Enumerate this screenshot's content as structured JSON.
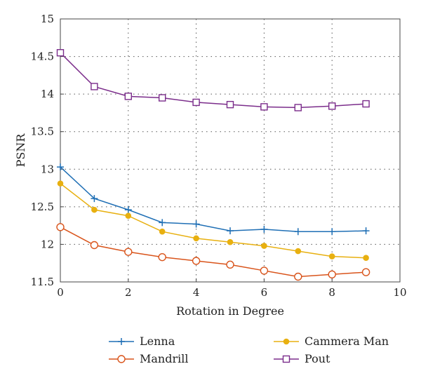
{
  "chart_data": {
    "type": "line",
    "title": "",
    "xlabel": "Rotation in Degree",
    "ylabel": "PSNR",
    "xlim": [
      0,
      10
    ],
    "ylim": [
      11.5,
      15
    ],
    "xticks": [
      0,
      2,
      4,
      6,
      8,
      10
    ],
    "yticks": [
      11.5,
      12,
      12.5,
      13,
      13.5,
      14,
      14.5,
      15
    ],
    "grid": true,
    "legend_position": "bottom",
    "x": [
      0,
      1,
      2,
      3,
      4,
      5,
      6,
      7,
      8,
      9
    ],
    "series": [
      {
        "name": "Lenna",
        "color": "#1f6fb5",
        "marker": "plus",
        "values": [
          13.03,
          12.61,
          12.46,
          12.29,
          12.27,
          12.18,
          12.2,
          12.17,
          12.17,
          12.18
        ]
      },
      {
        "name": "Cammera Man",
        "color": "#e8b010",
        "marker": "dot",
        "values": [
          12.81,
          12.46,
          12.38,
          12.17,
          12.08,
          12.03,
          11.98,
          11.91,
          11.84,
          11.82
        ]
      },
      {
        "name": "Mandrill",
        "color": "#d9541b",
        "marker": "circle",
        "values": [
          12.23,
          11.99,
          11.9,
          11.83,
          11.78,
          11.73,
          11.65,
          11.57,
          11.6,
          11.63
        ]
      },
      {
        "name": "Pout",
        "color": "#7b2d8b",
        "marker": "square",
        "values": [
          14.55,
          14.1,
          13.97,
          13.95,
          13.89,
          13.86,
          13.83,
          13.82,
          13.84,
          13.87
        ]
      }
    ]
  }
}
